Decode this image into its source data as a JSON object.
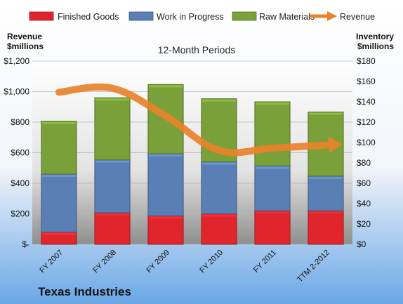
{
  "chart_data": {
    "type": "bar",
    "stacked": true,
    "subtitle": "12-Month Periods",
    "company": "Texas Industries",
    "left_axis": {
      "title_line1": "Revenue",
      "title_line2": "$millions",
      "ylim": [
        0,
        1200
      ],
      "ticks": [
        "$-",
        "$200",
        "$400",
        "$600",
        "$800",
        "$1,000",
        "$1,200"
      ],
      "tick_values": [
        0,
        200,
        400,
        600,
        800,
        1000,
        1200
      ]
    },
    "right_axis": {
      "title_line1": "Inventory",
      "title_line2": "$millions",
      "ylim": [
        0,
        180
      ],
      "ticks": [
        "$0",
        "$20",
        "$40",
        "$60",
        "$80",
        "$100",
        "$120",
        "$140",
        "$160",
        "$180"
      ],
      "tick_values": [
        0,
        20,
        40,
        60,
        80,
        100,
        120,
        140,
        160,
        180
      ]
    },
    "categories": [
      "FY 2007",
      "FY 2008",
      "FY 2009",
      "FY 2010",
      "FY 2011",
      "TTM 2-2012"
    ],
    "series": [
      {
        "name": "Finished Goods",
        "axis": "right",
        "color": "#e0262c",
        "values": [
          12,
          31,
          28,
          30,
          33,
          33
        ]
      },
      {
        "name": "Work in Progress",
        "axis": "right",
        "color": "#5a7fb5",
        "values": [
          57,
          52,
          61,
          51,
          44,
          34
        ]
      },
      {
        "name": "Raw Materials",
        "axis": "right",
        "color": "#7aa03a",
        "values": [
          52,
          61,
          68,
          62,
          63,
          63
        ]
      },
      {
        "name": "Revenue",
        "axis": "left",
        "type": "line",
        "color": "#e8822a",
        "values": [
          996,
          1022,
          840,
          615,
          630,
          650
        ]
      }
    ],
    "legend_position": "top",
    "grid": true
  }
}
